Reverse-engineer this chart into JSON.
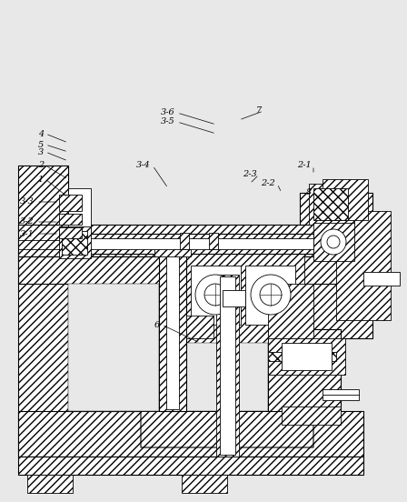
{
  "figsize": [
    4.48,
    5.52
  ],
  "dpi": 100,
  "bg": "#e8e8e8",
  "black": "#000000",
  "white": "#ffffff",
  "gray": "#aaaaaa"
}
